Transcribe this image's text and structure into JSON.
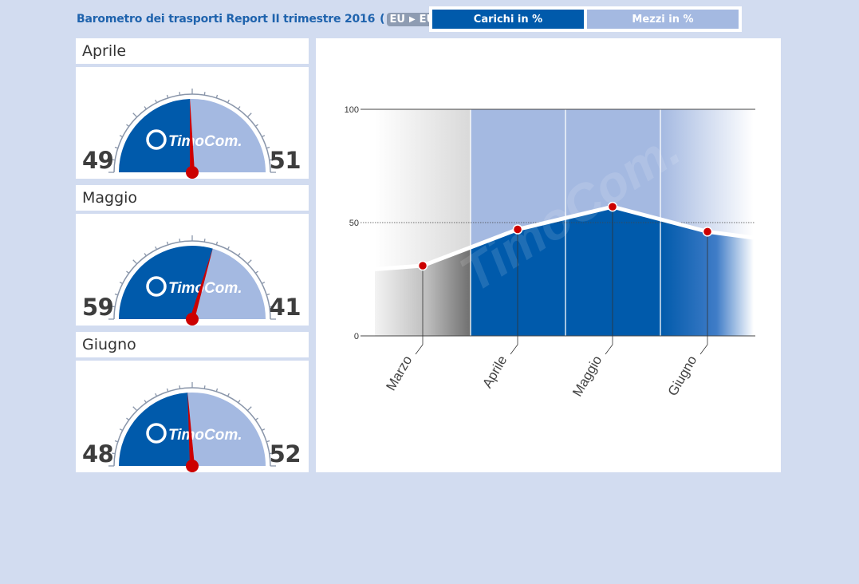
{
  "header": {
    "title": "Barometro dei trasporti Report II trimestre 2016",
    "region_from": "EU",
    "region_to": "EU",
    "paren_open": "(",
    "paren_close": ")"
  },
  "tabs": [
    {
      "label": "Carichi in %",
      "active": true
    },
    {
      "label": "Mezzi in %",
      "active": false
    }
  ],
  "gauges": [
    {
      "month": "Aprile",
      "left_value": 49,
      "right_value": 51,
      "logo": "TimoCom."
    },
    {
      "month": "Maggio",
      "left_value": 59,
      "right_value": 41,
      "logo": "TimoCom."
    },
    {
      "month": "Giugno",
      "left_value": 48,
      "right_value": 52,
      "logo": "TimoCom."
    }
  ],
  "colors": {
    "dark_blue": "#005aab",
    "light_blue": "#a4b9e1",
    "needle_red": "#cc0000",
    "background": "#d2dcf0"
  },
  "chart_data": {
    "type": "area",
    "categories": [
      "Marzo",
      "Aprile",
      "Maggio",
      "Giugno"
    ],
    "series": [
      {
        "values": [
          31,
          47,
          57,
          46
        ]
      }
    ],
    "yticks": [
      0,
      50,
      100
    ],
    "ylim": [
      0,
      100
    ],
    "xlabel": "",
    "ylabel": "",
    "grid": true,
    "watermark": "TimoCom."
  }
}
